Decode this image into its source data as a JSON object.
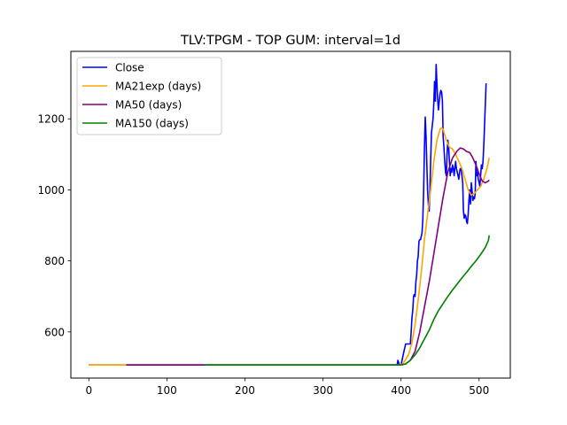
{
  "chart_data": {
    "type": "line",
    "title": "TLV:TPGM - TOP GUM: interval=1d",
    "xlabel": "",
    "ylabel": "",
    "xlim": [
      -23,
      540
    ],
    "ylim": [
      470,
      1390
    ],
    "xticks": [
      0,
      100,
      200,
      300,
      400,
      500
    ],
    "yticks": [
      600,
      800,
      1000,
      1200
    ],
    "grid": false,
    "legend_position": "top-left",
    "series": [
      {
        "name": "Close",
        "color": "#0000ff",
        "points": [
          [
            0,
            507
          ],
          [
            395,
            507
          ],
          [
            396,
            520
          ],
          [
            398,
            507
          ],
          [
            400,
            507
          ],
          [
            404,
            548
          ],
          [
            406,
            566
          ],
          [
            410,
            566
          ],
          [
            412,
            566
          ],
          [
            413,
            600
          ],
          [
            414,
            640
          ],
          [
            415,
            660
          ],
          [
            416,
            700
          ],
          [
            417,
            705
          ],
          [
            418,
            700
          ],
          [
            419,
            740
          ],
          [
            420,
            760
          ],
          [
            421,
            800
          ],
          [
            422,
            812
          ],
          [
            423,
            855
          ],
          [
            424,
            860
          ],
          [
            425,
            860
          ],
          [
            426,
            870
          ],
          [
            427,
            880
          ],
          [
            428,
            920
          ],
          [
            429,
            1000
          ],
          [
            430,
            1120
          ],
          [
            431,
            1205
          ],
          [
            432,
            1150
          ],
          [
            433,
            1080
          ],
          [
            434,
            1000
          ],
          [
            435,
            960
          ],
          [
            436,
            940
          ],
          [
            437,
            1000
          ],
          [
            438,
            1080
          ],
          [
            439,
            1160
          ],
          [
            440,
            1180
          ],
          [
            441,
            1200
          ],
          [
            442,
            1245
          ],
          [
            443,
            1305
          ],
          [
            444,
            1250
          ],
          [
            445,
            1353
          ],
          [
            446,
            1300
          ],
          [
            447,
            1250
          ],
          [
            448,
            1225
          ],
          [
            449,
            1250
          ],
          [
            450,
            1270
          ],
          [
            451,
            1280
          ],
          [
            452,
            1275
          ],
          [
            453,
            1250
          ],
          [
            454,
            1150
          ],
          [
            455,
            1120
          ],
          [
            456,
            1080
          ],
          [
            457,
            1050
          ],
          [
            458,
            1040
          ],
          [
            459,
            1100
          ],
          [
            460,
            1140
          ],
          [
            461,
            1120
          ],
          [
            462,
            1080
          ],
          [
            463,
            1040
          ],
          [
            464,
            1060
          ],
          [
            465,
            1050
          ],
          [
            466,
            1070
          ],
          [
            467,
            1060
          ],
          [
            468,
            1040
          ],
          [
            469,
            1060
          ],
          [
            470,
            1080
          ],
          [
            471,
            1060
          ],
          [
            472,
            1050
          ],
          [
            473,
            1040
          ],
          [
            474,
            1030
          ],
          [
            475,
            1050
          ],
          [
            476,
            1060
          ],
          [
            477,
            1060
          ],
          [
            478,
            1040
          ],
          [
            479,
            1020
          ],
          [
            480,
            940
          ],
          [
            481,
            920
          ],
          [
            482,
            930
          ],
          [
            483,
            925
          ],
          [
            484,
            910
          ],
          [
            485,
            905
          ],
          [
            486,
            930
          ],
          [
            487,
            970
          ],
          [
            488,
            1000
          ],
          [
            489,
            960
          ],
          [
            490,
            1020
          ],
          [
            491,
            1000
          ],
          [
            492,
            970
          ],
          [
            493,
            980
          ],
          [
            494,
            975
          ],
          [
            495,
            990
          ],
          [
            496,
            1080
          ],
          [
            497,
            1040
          ],
          [
            498,
            1050
          ],
          [
            499,
            1030
          ],
          [
            500,
            1020
          ],
          [
            501,
            1010
          ],
          [
            502,
            1040
          ],
          [
            503,
            1070
          ],
          [
            504,
            1060
          ],
          [
            505,
            1080
          ],
          [
            506,
            1120
          ],
          [
            507,
            1180
          ],
          [
            508,
            1240
          ],
          [
            509,
            1300
          ]
        ]
      },
      {
        "name": "MA21exp (days)",
        "color": "#ffa500",
        "points": [
          [
            0,
            507
          ],
          [
            398,
            507
          ],
          [
            402,
            510
          ],
          [
            406,
            522
          ],
          [
            410,
            538
          ],
          [
            414,
            570
          ],
          [
            418,
            620
          ],
          [
            422,
            690
          ],
          [
            426,
            770
          ],
          [
            430,
            860
          ],
          [
            434,
            930
          ],
          [
            438,
            1000
          ],
          [
            442,
            1080
          ],
          [
            446,
            1140
          ],
          [
            450,
            1170
          ],
          [
            452,
            1175
          ],
          [
            454,
            1170
          ],
          [
            458,
            1140
          ],
          [
            462,
            1120
          ],
          [
            466,
            1115
          ],
          [
            470,
            1100
          ],
          [
            474,
            1080
          ],
          [
            478,
            1060
          ],
          [
            482,
            1030
          ],
          [
            486,
            1000
          ],
          [
            490,
            985
          ],
          [
            494,
            990
          ],
          [
            498,
            1000
          ],
          [
            502,
            1010
          ],
          [
            506,
            1030
          ],
          [
            510,
            1060
          ],
          [
            513,
            1090
          ]
        ]
      },
      {
        "name": "MA50 (days)",
        "color": "#800080",
        "points": [
          [
            48,
            507
          ],
          [
            400,
            507
          ],
          [
            406,
            510
          ],
          [
            412,
            520
          ],
          [
            418,
            545
          ],
          [
            424,
            600
          ],
          [
            430,
            670
          ],
          [
            436,
            740
          ],
          [
            442,
            820
          ],
          [
            448,
            900
          ],
          [
            454,
            980
          ],
          [
            460,
            1050
          ],
          [
            466,
            1090
          ],
          [
            472,
            1110
          ],
          [
            476,
            1118
          ],
          [
            480,
            1115
          ],
          [
            484,
            1108
          ],
          [
            488,
            1105
          ],
          [
            492,
            1090
          ],
          [
            496,
            1070
          ],
          [
            500,
            1045
          ],
          [
            504,
            1025
          ],
          [
            508,
            1020
          ],
          [
            512,
            1025
          ],
          [
            513,
            1028
          ]
        ]
      },
      {
        "name": "MA150 (days)",
        "color": "#008000",
        "points": [
          [
            148,
            507
          ],
          [
            400,
            507
          ],
          [
            406,
            510
          ],
          [
            412,
            520
          ],
          [
            418,
            535
          ],
          [
            424,
            555
          ],
          [
            430,
            580
          ],
          [
            436,
            605
          ],
          [
            442,
            635
          ],
          [
            448,
            660
          ],
          [
            454,
            680
          ],
          [
            460,
            700
          ],
          [
            466,
            718
          ],
          [
            472,
            735
          ],
          [
            478,
            752
          ],
          [
            484,
            768
          ],
          [
            490,
            785
          ],
          [
            496,
            800
          ],
          [
            502,
            818
          ],
          [
            508,
            838
          ],
          [
            512,
            858
          ],
          [
            513,
            872
          ]
        ]
      }
    ]
  }
}
